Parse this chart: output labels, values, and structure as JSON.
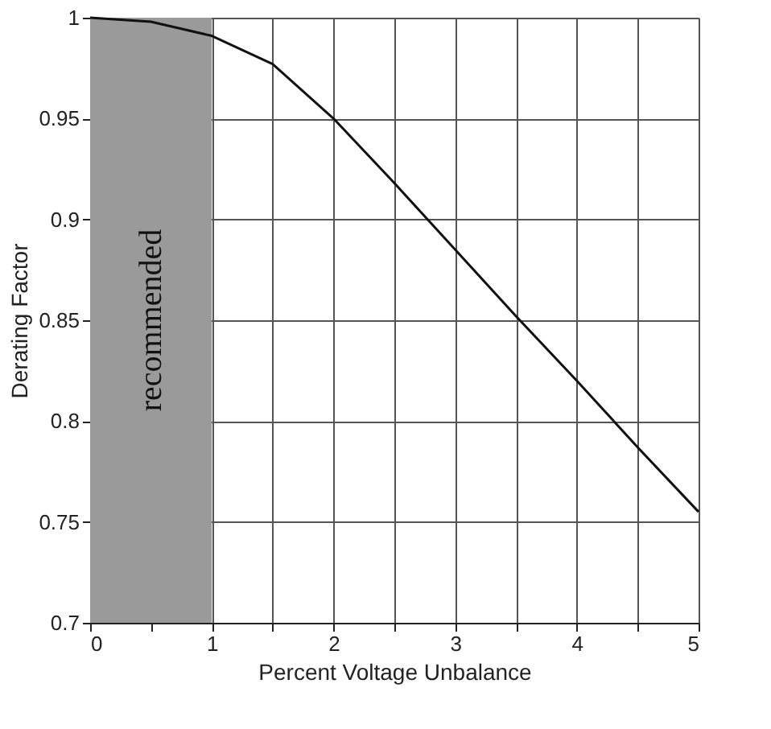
{
  "chart_data": {
    "type": "line",
    "xlabel": "Percent Voltage Unbalance",
    "ylabel": "Derating Factor",
    "x": [
      0,
      0.5,
      1,
      1.5,
      2,
      2.5,
      3,
      3.5,
      4,
      4.5,
      5
    ],
    "series": [
      {
        "color": "#111111",
        "values": [
          1,
          0.998,
          0.991,
          0.977,
          0.95,
          0.918,
          0.885,
          0.852,
          0.82,
          0.787,
          0.755
        ]
      }
    ],
    "xlim": [
      0,
      5
    ],
    "ylim": [
      0.7,
      1
    ],
    "xticks": [
      0,
      {
        "value": 0.5,
        "label": null
      },
      1,
      {
        "value": 1.5,
        "label": null
      },
      2,
      {
        "value": 2.5,
        "label": null
      },
      3,
      {
        "value": 3.5,
        "label": null
      },
      4,
      {
        "value": 4.5,
        "label": null
      },
      5
    ],
    "yticks": [
      0.7,
      0.75,
      0.8,
      0.85,
      0.9,
      0.95,
      1
    ],
    "bands": [
      {
        "axis": "x",
        "from": 0,
        "to": 1,
        "label": "recommended",
        "color": "#9a9a9a"
      }
    ],
    "grid": true,
    "marker": "none",
    "line_style": "solid"
  }
}
